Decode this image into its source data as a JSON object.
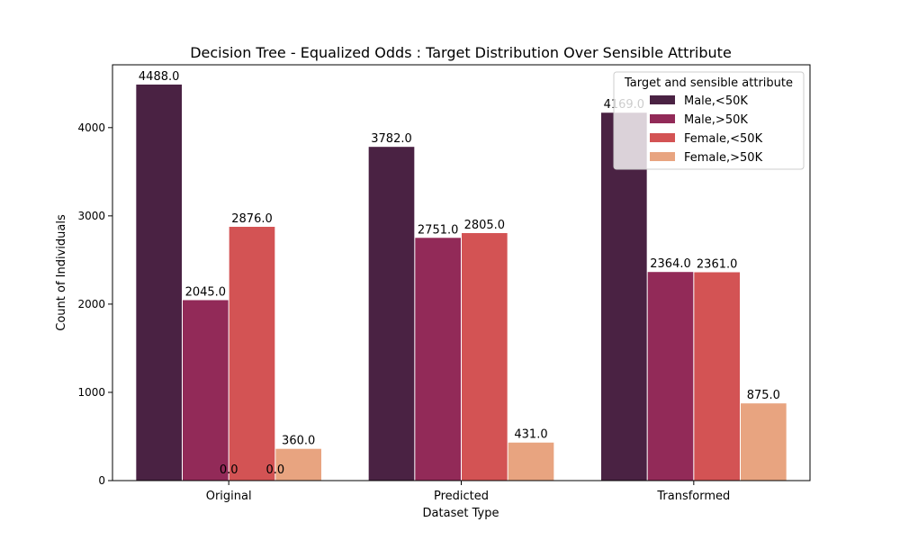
{
  "chart_data": {
    "type": "bar",
    "title": "Decision Tree - Equalized Odds : Target Distribution Over Sensible Attribute",
    "xlabel": "Dataset Type",
    "ylabel": "Count of Individuals",
    "categories": [
      "Original",
      "Predicted",
      "Transformed"
    ],
    "ylim": [
      0,
      4712
    ],
    "yticks": [
      0,
      1000,
      2000,
      3000,
      4000
    ],
    "legend": {
      "title": "Target and sensible attribute",
      "placement": "top-right"
    },
    "series": [
      {
        "name": "Male,<50K",
        "color": "#4a2243",
        "values": [
          4488,
          3782,
          4169
        ]
      },
      {
        "name": "Male,>50K",
        "color": "#922a58",
        "values": [
          2045,
          2751,
          2364
        ]
      },
      {
        "name": "Female,<50K",
        "color": "#d35354",
        "values": [
          2876,
          2805,
          2361
        ]
      },
      {
        "name": "Female,>50K",
        "color": "#e8a480",
        "values": [
          360,
          431,
          875
        ]
      }
    ],
    "stray_labels": [
      {
        "category": "Original",
        "series": "Male,>50K",
        "text": "0.0"
      },
      {
        "category": "Original",
        "series": "Female,<50K",
        "text": "0.0"
      }
    ]
  }
}
